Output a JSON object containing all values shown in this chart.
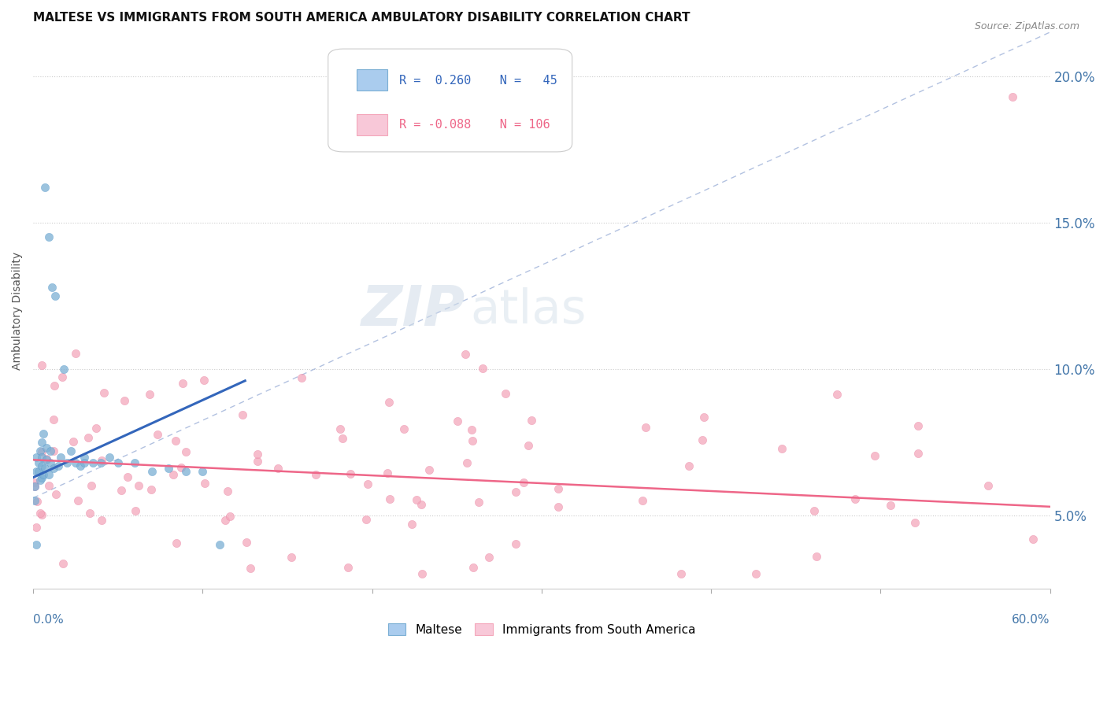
{
  "title": "MALTESE VS IMMIGRANTS FROM SOUTH AMERICA AMBULATORY DISABILITY CORRELATION CHART",
  "source": "Source: ZipAtlas.com",
  "ylabel": "Ambulatory Disability",
  "yticks": [
    0.05,
    0.1,
    0.15,
    0.2
  ],
  "ytick_labels": [
    "5.0%",
    "10.0%",
    "15.0%",
    "20.0%"
  ],
  "xlim": [
    0.0,
    0.6
  ],
  "ylim": [
    0.025,
    0.215
  ],
  "color_blue": "#7BAFD4",
  "color_blue_edge": "#5599CC",
  "color_pink": "#F4A7BB",
  "color_pink_edge": "#E87FA0",
  "color_trendline_blue": "#3366BB",
  "color_trendline_pink": "#EE6688",
  "color_diagonal": "#AABBDD",
  "watermark_zip": "ZIP",
  "watermark_atlas": "atlas"
}
